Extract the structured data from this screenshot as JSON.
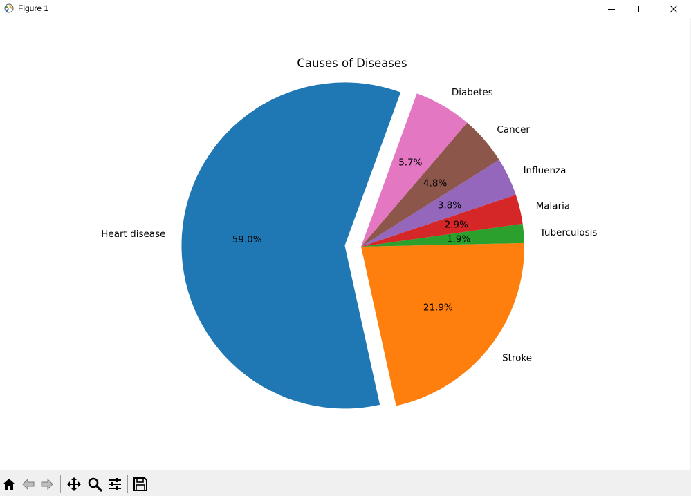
{
  "window": {
    "title": "Figure 1",
    "controls": {
      "minimize": "minimize-icon",
      "maximize": "maximize-icon",
      "close": "close-icon"
    }
  },
  "toolbar": {
    "buttons": [
      "home-icon",
      "back-icon",
      "forward-icon",
      "pan-icon",
      "zoom-icon",
      "configure-subplots-icon",
      "save-icon"
    ]
  },
  "chart_data": {
    "type": "pie",
    "title": "Causes of Diseases",
    "labels": [
      "Heart disease",
      "Stroke",
      "Tuberculosis",
      "Malaria",
      "Influenza",
      "Cancer",
      "Diabetes"
    ],
    "values": [
      59.0,
      21.9,
      1.9,
      2.9,
      3.8,
      4.8,
      5.7
    ],
    "autopct": [
      "59.0%",
      "21.9%",
      "1.9%",
      "2.9%",
      "3.8%",
      "4.8%",
      "5.7%"
    ],
    "colors": [
      "#1f77b4",
      "#ff7f0e",
      "#2ca02c",
      "#d62728",
      "#9467bd",
      "#8c564b",
      "#e377c2"
    ],
    "explode": [
      0.1,
      0,
      0,
      0,
      0,
      0,
      0
    ],
    "startangle_deg": 70,
    "direction": "counterclockwise"
  }
}
